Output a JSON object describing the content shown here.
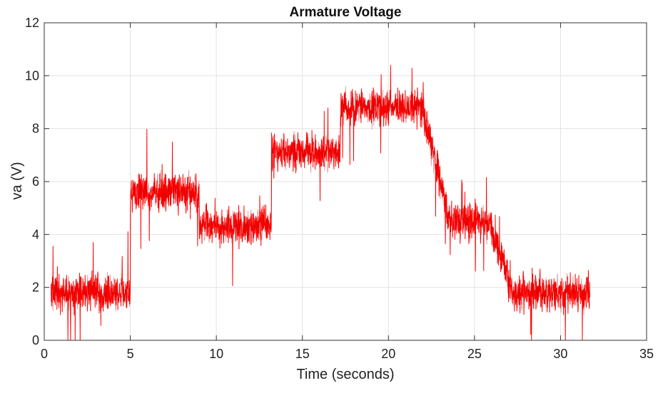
{
  "chart_data": {
    "type": "line",
    "title": "Armature Voltage",
    "xlabel": "Time (seconds)",
    "ylabel": "va (V)",
    "xlim": [
      0,
      35
    ],
    "ylim": [
      0,
      12
    ],
    "x_ticks": [
      0,
      5,
      10,
      15,
      20,
      25,
      30,
      35
    ],
    "y_ticks": [
      0,
      2,
      4,
      6,
      8,
      10,
      12
    ],
    "x_tick_labels": [
      "0",
      "5",
      "10",
      "15",
      "20",
      "25",
      "30",
      "35"
    ],
    "y_tick_labels": [
      "0",
      "2",
      "4",
      "6",
      "8",
      "10",
      "12"
    ],
    "grid": true,
    "legend": "none",
    "colors": {
      "series": "#ff0000",
      "series_dark": "#b40000",
      "grid": "#e3e3e3",
      "axes": "#333333"
    },
    "series": [
      {
        "color": "#ff0000",
        "x_range": [
          0.4,
          31.7
        ],
        "noise_band": 1.0,
        "segments": [
          {
            "t0": 0.4,
            "t1": 5.0,
            "level": 1.8
          },
          {
            "t0": 5.0,
            "t1": 9.0,
            "level": 5.6
          },
          {
            "t0": 9.0,
            "t1": 13.2,
            "level": 4.3
          },
          {
            "t0": 13.2,
            "t1": 17.2,
            "level": 7.1
          },
          {
            "t0": 17.2,
            "t1": 22.0,
            "level": 8.8
          },
          {
            "t0": 22.0,
            "t1": 23.5,
            "level": 8.8,
            "level_end": 4.6
          },
          {
            "t0": 23.5,
            "t1": 26.0,
            "level": 4.5
          },
          {
            "t0": 26.0,
            "t1": 27.2,
            "level": 4.3,
            "level_end": 1.9
          },
          {
            "t0": 27.2,
            "t1": 31.7,
            "level": 1.8
          }
        ]
      }
    ]
  }
}
